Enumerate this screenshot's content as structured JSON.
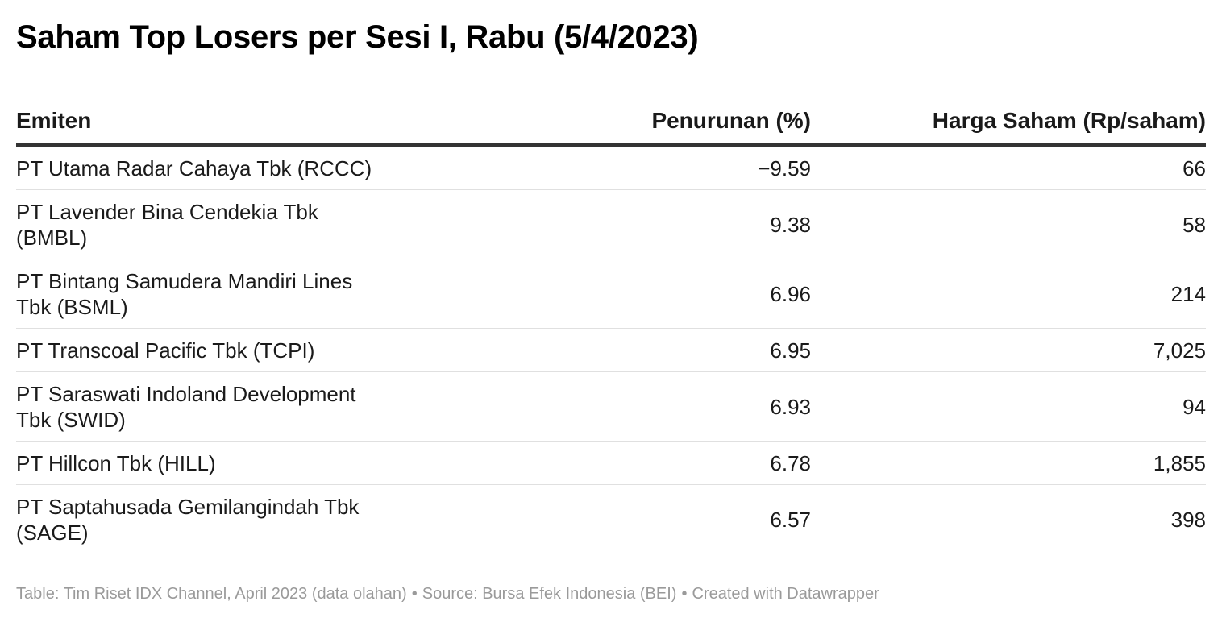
{
  "chart_data": {
    "type": "table",
    "title": "Saham Top Losers per Sesi I, Rabu (5/4/2023)",
    "columns": [
      "Emiten",
      "Penurunan (%)",
      "Harga Saham (Rp/saham)"
    ],
    "rows": [
      {
        "emiten": "PT Utama Radar Cahaya Tbk (RCCC)",
        "penurunan": "−9.59",
        "harga": "66"
      },
      {
        "emiten": "PT Lavender Bina Cendekia Tbk (BMBL)",
        "penurunan": "9.38",
        "harga": "58"
      },
      {
        "emiten": "PT Bintang Samudera Mandiri Lines Tbk (BSML)",
        "penurunan": "6.96",
        "harga": "214"
      },
      {
        "emiten": "PT Transcoal Pacific Tbk (TCPI)",
        "penurunan": "6.95",
        "harga": "7,025"
      },
      {
        "emiten": "PT Saraswati Indoland Development Tbk (SWID)",
        "penurunan": "6.93",
        "harga": "94"
      },
      {
        "emiten": "PT Hillcon Tbk (HILL)",
        "penurunan": "6.78",
        "harga": "1,855"
      },
      {
        "emiten": "PT Saptahusada Gemilangindah Tbk (SAGE)",
        "penurunan": "6.57",
        "harga": "398"
      }
    ]
  },
  "footer": {
    "table_note": "Table: Tim Riset IDX Channel, April 2023 (data olahan)",
    "source": "Source: Bursa Efek Indonesia (BEI)",
    "created": "Created with Datawrapper",
    "separator": "•"
  },
  "colors": {
    "text": "#1a1a1a",
    "header_rule": "#333333",
    "row_rule": "#e0e0e0",
    "footer_text": "#9a9a9a"
  }
}
